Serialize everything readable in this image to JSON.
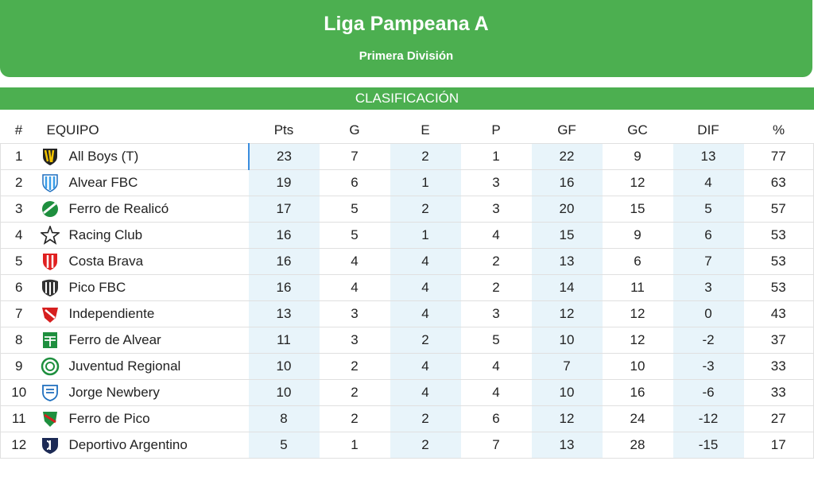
{
  "header": {
    "title": "Liga Pampeana A",
    "subtitle": "Primera División"
  },
  "section": {
    "label": "CLASIFICACIÓN"
  },
  "table": {
    "columns": [
      "#",
      "EQUIPO",
      "Pts",
      "G",
      "E",
      "P",
      "GF",
      "GC",
      "DIF",
      "%"
    ],
    "rows": [
      {
        "pos": "1",
        "team": "All Boys (T)",
        "crest": "all-boys-crest-icon",
        "pts": "23",
        "g": "7",
        "e": "2",
        "p": "1",
        "gf": "22",
        "gc": "9",
        "dif": "13",
        "pct": "77"
      },
      {
        "pos": "2",
        "team": "Alvear FBC",
        "crest": "alvear-fbc-crest-icon",
        "pts": "19",
        "g": "6",
        "e": "1",
        "p": "3",
        "gf": "16",
        "gc": "12",
        "dif": "4",
        "pct": "63"
      },
      {
        "pos": "3",
        "team": "Ferro de Realicó",
        "crest": "ferro-realico-crest-icon",
        "pts": "17",
        "g": "5",
        "e": "2",
        "p": "3",
        "gf": "20",
        "gc": "15",
        "dif": "5",
        "pct": "57"
      },
      {
        "pos": "4",
        "team": "Racing Club",
        "crest": "racing-club-crest-icon",
        "pts": "16",
        "g": "5",
        "e": "1",
        "p": "4",
        "gf": "15",
        "gc": "9",
        "dif": "6",
        "pct": "53"
      },
      {
        "pos": "5",
        "team": "Costa Brava",
        "crest": "costa-brava-crest-icon",
        "pts": "16",
        "g": "4",
        "e": "4",
        "p": "2",
        "gf": "13",
        "gc": "6",
        "dif": "7",
        "pct": "53"
      },
      {
        "pos": "6",
        "team": "Pico FBC",
        "crest": "pico-fbc-crest-icon",
        "pts": "16",
        "g": "4",
        "e": "4",
        "p": "2",
        "gf": "14",
        "gc": "11",
        "dif": "3",
        "pct": "53"
      },
      {
        "pos": "7",
        "team": "Independiente",
        "crest": "independiente-crest-icon",
        "pts": "13",
        "g": "3",
        "e": "4",
        "p": "3",
        "gf": "12",
        "gc": "12",
        "dif": "0",
        "pct": "43"
      },
      {
        "pos": "8",
        "team": "Ferro de Alvear",
        "crest": "ferro-alvear-crest-icon",
        "pts": "11",
        "g": "3",
        "e": "2",
        "p": "5",
        "gf": "10",
        "gc": "12",
        "dif": "-2",
        "pct": "37"
      },
      {
        "pos": "9",
        "team": "Juventud Regional",
        "crest": "juventud-regional-crest-icon",
        "pts": "10",
        "g": "2",
        "e": "4",
        "p": "4",
        "gf": "7",
        "gc": "10",
        "dif": "-3",
        "pct": "33"
      },
      {
        "pos": "10",
        "team": "Jorge Newbery",
        "crest": "jorge-newbery-crest-icon",
        "pts": "10",
        "g": "2",
        "e": "4",
        "p": "4",
        "gf": "10",
        "gc": "16",
        "dif": "-6",
        "pct": "33"
      },
      {
        "pos": "11",
        "team": "Ferro de Pico",
        "crest": "ferro-pico-crest-icon",
        "pts": "8",
        "g": "2",
        "e": "2",
        "p": "6",
        "gf": "12",
        "gc": "24",
        "dif": "-12",
        "pct": "27"
      },
      {
        "pos": "12",
        "team": "Deportivo Argentino",
        "crest": "deportivo-argentino-crest-icon",
        "pts": "5",
        "g": "1",
        "e": "2",
        "p": "7",
        "gf": "13",
        "gc": "28",
        "dif": "-15",
        "pct": "17"
      }
    ]
  },
  "colors": {
    "accent": "#4caf50",
    "alt_column": "#e8f4fa",
    "selection": "#3a8dde"
  }
}
